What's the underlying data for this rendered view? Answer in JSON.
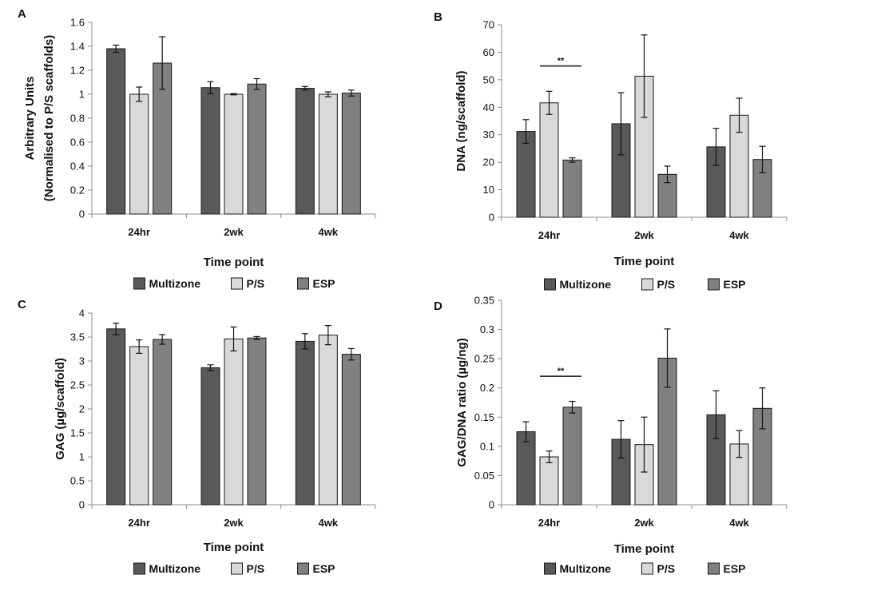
{
  "chart_data": [
    {
      "panel": "A",
      "type": "bar",
      "categories": [
        "24hr",
        "2wk",
        "4wk"
      ],
      "series": [
        {
          "name": "Multizone",
          "values": [
            1.38,
            1.055,
            1.05
          ],
          "errors": [
            0.03,
            0.05,
            0.015
          ]
        },
        {
          "name": "P/S",
          "values": [
            1.0,
            1.0,
            1.0
          ],
          "errors": [
            0.06,
            0.005,
            0.02
          ]
        },
        {
          "name": "ESP",
          "values": [
            1.26,
            1.085,
            1.01
          ],
          "errors": [
            0.22,
            0.045,
            0.025
          ]
        }
      ],
      "xlabel": "Time point",
      "ylabel": [
        "Arbitrary Units",
        "(Normalised to P/S scaffolds)"
      ],
      "ylim": [
        0,
        1.6
      ],
      "yticks": [
        "0",
        "0.2",
        "0.4",
        "0.6",
        "0.8",
        "1",
        "1.2",
        "1.4",
        "1.6"
      ],
      "significance": []
    },
    {
      "panel": "B",
      "type": "bar",
      "categories": [
        "24hr",
        "2wk",
        "4wk"
      ],
      "series": [
        {
          "name": "Multizone",
          "values": [
            31.2,
            34.0,
            25.6
          ],
          "errors": [
            4.3,
            11.3,
            6.7
          ]
        },
        {
          "name": "P/S",
          "values": [
            41.6,
            51.3,
            37.1
          ],
          "errors": [
            4.2,
            15.0,
            6.2
          ]
        },
        {
          "name": "ESP",
          "values": [
            20.8,
            15.6,
            21.0
          ],
          "errors": [
            0.8,
            3.0,
            4.8
          ]
        }
      ],
      "xlabel": "Time point",
      "ylabel": [
        "DNA (ng/scaffold)"
      ],
      "ylim": [
        0,
        70
      ],
      "yticks": [
        "0",
        "10",
        "20",
        "30",
        "40",
        "50",
        "60",
        "70"
      ],
      "significance": [
        {
          "category": 0,
          "label": "**",
          "y": 55
        }
      ]
    },
    {
      "panel": "C",
      "type": "bar",
      "categories": [
        "24hr",
        "2wk",
        "4wk"
      ],
      "series": [
        {
          "name": "Multizone",
          "values": [
            3.67,
            2.86,
            3.41
          ],
          "errors": [
            0.12,
            0.06,
            0.16
          ]
        },
        {
          "name": "P/S",
          "values": [
            3.3,
            3.46,
            3.54
          ],
          "errors": [
            0.14,
            0.25,
            0.2
          ]
        },
        {
          "name": "ESP",
          "values": [
            3.45,
            3.48,
            3.14
          ],
          "errors": [
            0.1,
            0.03,
            0.12
          ]
        }
      ],
      "xlabel": "Time point",
      "ylabel": [
        "GAG (µg/scaffold)"
      ],
      "ylim": [
        0,
        4
      ],
      "yticks": [
        "0",
        "0.5",
        "1",
        "1.5",
        "2",
        "2.5",
        "3",
        "3.5",
        "4"
      ],
      "significance": []
    },
    {
      "panel": "D",
      "type": "bar",
      "categories": [
        "24hr",
        "2wk",
        "4wk"
      ],
      "series": [
        {
          "name": "Multizone",
          "values": [
            0.125,
            0.112,
            0.154
          ],
          "errors": [
            0.017,
            0.032,
            0.041
          ]
        },
        {
          "name": "P/S",
          "values": [
            0.082,
            0.103,
            0.104
          ],
          "errors": [
            0.01,
            0.047,
            0.023
          ]
        },
        {
          "name": "ESP",
          "values": [
            0.167,
            0.251,
            0.165
          ],
          "errors": [
            0.01,
            0.05,
            0.035
          ]
        }
      ],
      "xlabel": "Time point",
      "ylabel": [
        "GAG/DNA ratio (µg/ng)"
      ],
      "ylim": [
        0,
        0.35
      ],
      "yticks": [
        "0",
        "0.05",
        "0.1",
        "0.15",
        "0.2",
        "0.25",
        "0.3",
        "0.35"
      ],
      "significance": [
        {
          "category": 0,
          "label": "**",
          "y": 0.22
        }
      ]
    }
  ],
  "legend": [
    {
      "name": "Multizone",
      "color": "#595959"
    },
    {
      "name": "P/S",
      "color": "#d9d9d9"
    },
    {
      "name": "ESP",
      "color": "#808080"
    }
  ]
}
